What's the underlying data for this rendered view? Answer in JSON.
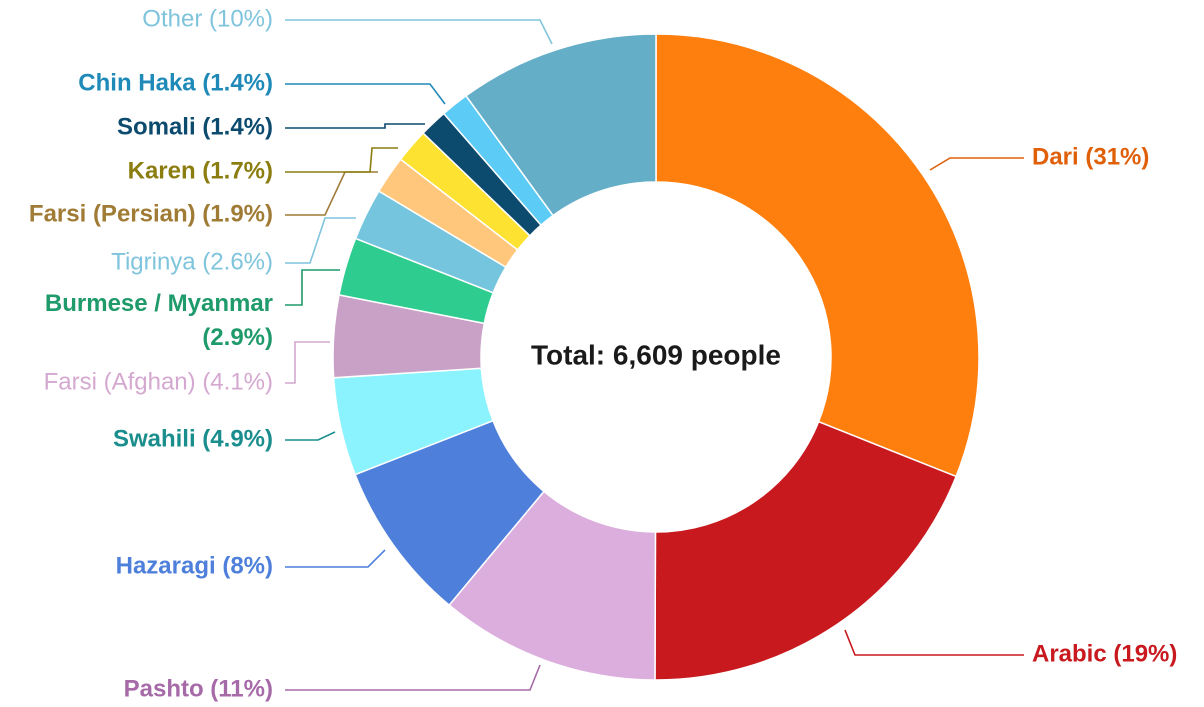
{
  "chart_data": {
    "type": "donut",
    "center_label": "Total: 6,609 people",
    "slices": [
      {
        "name": "Dari",
        "label": "Dari (31%)",
        "value": 31,
        "color": "#ff7f0e",
        "label_color": "#e0600a",
        "bold": true
      },
      {
        "name": "Arabic",
        "label": "Arabic (19%)",
        "value": 19,
        "color": "#c8191e",
        "label_color": "#c8191e",
        "bold": true
      },
      {
        "name": "Pashto",
        "label": "Pashto (11%)",
        "value": 11,
        "color": "#dbaedd",
        "label_color": "#a66aa8",
        "bold": true
      },
      {
        "name": "Hazaragi",
        "label": "Hazaragi (8%)",
        "value": 8,
        "color": "#4e7fdb",
        "label_color": "#4e7fdb",
        "bold": true
      },
      {
        "name": "Swahili",
        "label": "Swahili (4.9%)",
        "value": 4.9,
        "color": "#8af3fd",
        "label_color": "#1a8d8d",
        "bold": true
      },
      {
        "name": "Farsi (Afghan)",
        "label": "Farsi (Afghan) (4.1%)",
        "value": 4.1,
        "color": "#c9a1c6",
        "label_color": "#d4a8d0",
        "bold": false
      },
      {
        "name": "Burmese / Myanmar",
        "label": "Burmese / Myanmar (2.9%)",
        "value": 2.9,
        "color": "#2ecc8f",
        "label_color": "#1f9a6a",
        "bold": true
      },
      {
        "name": "Tigrinya",
        "label": "Tigrinya (2.6%)",
        "value": 2.6,
        "color": "#76c5df",
        "label_color": "#7fc4dd",
        "bold": false
      },
      {
        "name": "Farsi (Persian)",
        "label": "Farsi (Persian) (1.9%)",
        "value": 1.9,
        "color": "#ffc77c",
        "label_color": "#a07b35",
        "bold": true
      },
      {
        "name": "Karen",
        "label": "Karen (1.7%)",
        "value": 1.7,
        "color": "#fde232",
        "label_color": "#8c7d10",
        "bold": true
      },
      {
        "name": "Somali",
        "label": "Somali (1.4%)",
        "value": 1.4,
        "color": "#0c4a6e",
        "label_color": "#0c4a6e",
        "bold": true
      },
      {
        "name": "Chin Haka",
        "label": "Chin Haka (1.4%)",
        "value": 1.4,
        "color": "#5ccbf5",
        "label_color": "#1f8ab8",
        "bold": true
      },
      {
        "name": "Other",
        "label": "Other (10%)",
        "value": 10,
        "color": "#64aec8",
        "label_color": "#7fc4dd",
        "bold": false
      }
    ]
  }
}
